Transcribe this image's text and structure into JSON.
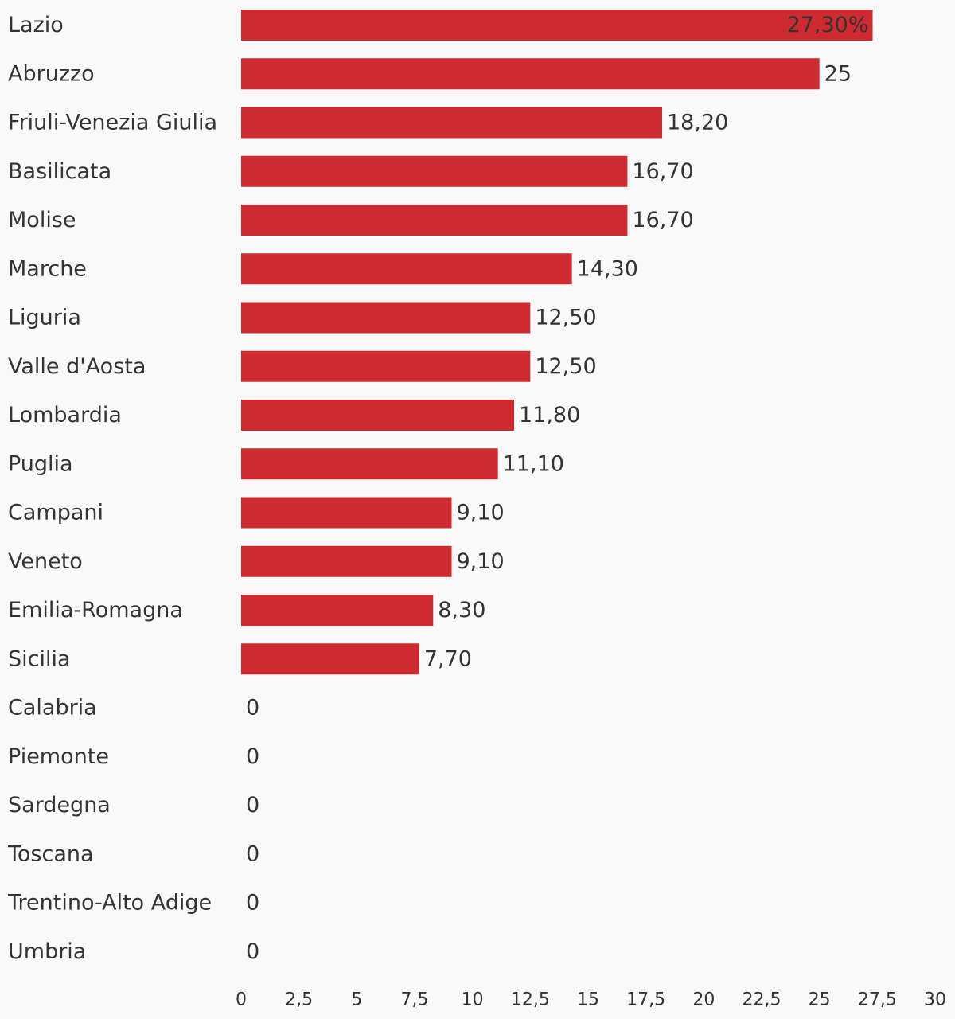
{
  "chart_data": {
    "type": "bar",
    "orientation": "horizontal",
    "title": "",
    "xlabel": "",
    "ylabel": "",
    "xlim": [
      0,
      30
    ],
    "grid": false,
    "legend": "none",
    "bar_color": "#cf2a30",
    "text_color": "#333333",
    "background": "#f9f9f9",
    "categories": [
      "Lazio",
      "Abruzzo",
      "Friuli-Venezia Giulia",
      "Basilicata",
      "Molise",
      "Marche",
      "Liguria",
      "Valle d'Aosta",
      "Lombardia",
      "Puglia",
      "Campani",
      "Veneto",
      "Emilia-Romagna",
      "Sicilia",
      "Calabria",
      "Piemonte",
      "Sardegna",
      "Toscana",
      "Trentino-Alto Adige",
      "Umbria"
    ],
    "values": [
      27.3,
      25,
      18.2,
      16.7,
      16.7,
      14.3,
      12.5,
      12.5,
      11.8,
      11.1,
      9.1,
      9.1,
      8.3,
      7.7,
      0,
      0,
      0,
      0,
      0,
      0
    ],
    "data_labels": [
      "27,30%",
      "25",
      "18,20",
      "16,70",
      "16,70",
      "14,30",
      "12,50",
      "12,50",
      "11,80",
      "11,10",
      "9,10",
      "9,10",
      "8,30",
      "7,70",
      "0",
      "0",
      "0",
      "0",
      "0",
      "0"
    ],
    "x_ticks": [
      0,
      2.5,
      5,
      7.5,
      10,
      12.5,
      15,
      17.5,
      20,
      22.5,
      25,
      27.5,
      30
    ],
    "x_tick_labels": [
      "0",
      "2,5",
      "5",
      "7,5",
      "10",
      "12,5",
      "15",
      "17,5",
      "20",
      "22,5",
      "25",
      "27,5",
      "30"
    ]
  }
}
